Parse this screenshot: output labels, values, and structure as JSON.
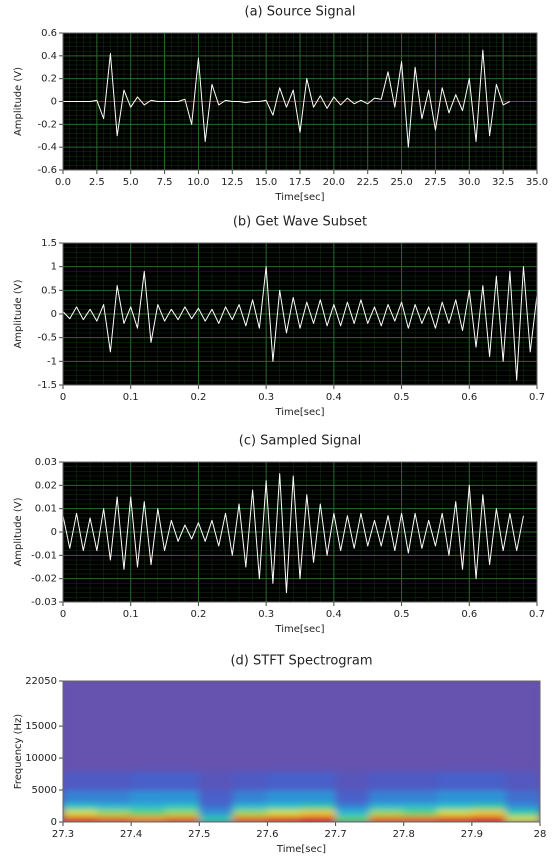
{
  "chart_data": [
    {
      "type": "line",
      "title": "(a) Source Signal",
      "x_label": "Time[sec]",
      "y_label": "Amplitude (V)",
      "color": "#ffffff",
      "background": "#000000",
      "grid": true,
      "grid_color": "#2a6a2a",
      "xlim": [
        0,
        35
      ],
      "ylim": [
        -0.6,
        0.6
      ],
      "xticks": [
        {
          "value": 0,
          "label": "0.0"
        },
        2.5,
        {
          "value": 5,
          "label": "5.0"
        },
        7.5,
        {
          "value": 10,
          "label": "10.0"
        },
        12.5,
        {
          "value": 15,
          "label": "15.0"
        },
        17.5,
        {
          "value": 20,
          "label": "20.0"
        },
        22.5,
        {
          "value": 25,
          "label": "25.0"
        },
        27.5,
        {
          "value": 30,
          "label": "30.0"
        },
        32.5,
        {
          "value": 35,
          "label": "35.0"
        }
      ],
      "yticks": [
        0.6,
        0.4,
        0.2,
        0,
        -0.2,
        -0.4,
        -0.6
      ],
      "x": [
        0,
        0.5,
        1,
        1.5,
        2,
        2.5,
        3,
        3.5,
        4,
        4.5,
        5,
        5.5,
        6,
        6.5,
        7,
        7.5,
        8,
        8.5,
        9,
        9.5,
        10,
        10.5,
        11,
        11.5,
        12,
        12.5,
        13,
        13.5,
        14,
        14.5,
        15,
        15.5,
        16,
        16.5,
        17,
        17.5,
        18,
        18.5,
        19,
        19.5,
        20,
        20.5,
        21,
        21.5,
        22,
        22.5,
        23,
        23.5,
        24,
        24.5,
        25,
        25.5,
        26,
        26.5,
        27,
        27.5,
        28,
        28.5,
        29,
        29.5,
        30,
        30.5,
        31,
        31.5,
        32,
        32.5,
        33
      ],
      "values": [
        0,
        0,
        0,
        0,
        0,
        0.01,
        -0.15,
        0.42,
        -0.3,
        0.1,
        -0.05,
        0.04,
        -0.03,
        0.01,
        0,
        0,
        0,
        0,
        0.02,
        -0.2,
        0.38,
        -0.35,
        0.15,
        -0.03,
        0.01,
        0,
        0,
        -0.01,
        0,
        0,
        0.01,
        -0.12,
        0.12,
        -0.05,
        0.1,
        -0.27,
        0.2,
        -0.05,
        0.05,
        -0.06,
        0.04,
        -0.03,
        0.03,
        -0.02,
        0.01,
        -0.02,
        0.03,
        0.02,
        0.26,
        -0.05,
        0.35,
        -0.4,
        0.3,
        -0.15,
        0.1,
        -0.25,
        0.12,
        -0.1,
        0.06,
        -0.08,
        0.2,
        -0.35,
        0.45,
        -0.3,
        0.15,
        -0.03,
        0
      ]
    },
    {
      "type": "line",
      "title": "(b) Get Wave Subset",
      "x_label": "Time[sec]",
      "y_label": "Amplitude (V)",
      "color": "#ffffff",
      "background": "#000000",
      "grid": true,
      "grid_color": "#2a6a2a",
      "xlim": [
        0,
        0.7
      ],
      "ylim": [
        -1.5,
        1.5
      ],
      "xticks": [
        0,
        0.1,
        0.2,
        0.3,
        0.4,
        0.5,
        0.6,
        0.7
      ],
      "yticks": [
        1.5,
        1,
        0.5,
        0,
        -0.5,
        -1,
        -1.5
      ],
      "x": [
        0,
        0.01,
        0.02,
        0.03,
        0.04,
        0.05,
        0.06,
        0.07,
        0.08,
        0.09,
        0.1,
        0.11,
        0.12,
        0.13,
        0.14,
        0.15,
        0.16,
        0.17,
        0.18,
        0.19,
        0.2,
        0.21,
        0.22,
        0.23,
        0.24,
        0.25,
        0.26,
        0.27,
        0.28,
        0.29,
        0.3,
        0.31,
        0.32,
        0.33,
        0.34,
        0.35,
        0.36,
        0.37,
        0.38,
        0.39,
        0.4,
        0.41,
        0.42,
        0.43,
        0.44,
        0.45,
        0.46,
        0.47,
        0.48,
        0.49,
        0.5,
        0.51,
        0.52,
        0.53,
        0.54,
        0.55,
        0.56,
        0.57,
        0.58,
        0.59,
        0.6,
        0.61,
        0.62,
        0.63,
        0.64,
        0.65,
        0.66,
        0.67,
        0.68,
        0.69,
        0.7
      ],
      "values": [
        0.05,
        -0.1,
        0.15,
        -0.12,
        0.1,
        -0.15,
        0.2,
        -0.8,
        0.6,
        -0.2,
        0.15,
        -0.3,
        0.9,
        -0.6,
        0.2,
        -0.15,
        0.1,
        -0.12,
        0.15,
        -0.1,
        0.12,
        -0.15,
        0.1,
        -0.2,
        0.15,
        -0.12,
        0.2,
        -0.25,
        0.3,
        -0.3,
        1.0,
        -1.0,
        0.5,
        -0.4,
        0.35,
        -0.3,
        0.25,
        -0.2,
        0.3,
        -0.25,
        0.2,
        -0.25,
        0.25,
        -0.2,
        0.3,
        -0.2,
        0.15,
        -0.25,
        0.2,
        -0.15,
        0.25,
        -0.3,
        0.2,
        -0.2,
        0.15,
        -0.3,
        0.25,
        -0.2,
        0.3,
        -0.35,
        0.5,
        -0.7,
        0.6,
        -0.9,
        0.8,
        -1.0,
        0.9,
        -1.4,
        1.0,
        -0.8,
        0.4
      ]
    },
    {
      "type": "line",
      "title": "(c) Sampled Signal",
      "x_label": "Time[sec]",
      "y_label": "Amplitude (V)",
      "color": "#ffffff",
      "background": "#000000",
      "grid": true,
      "grid_color": "#2a6a2a",
      "xlim": [
        0,
        0.7
      ],
      "ylim": [
        -0.03,
        0.03
      ],
      "xticks": [
        0,
        0.1,
        0.2,
        0.3,
        0.4,
        0.5,
        0.6,
        0.7
      ],
      "yticks": [
        0.03,
        0.02,
        0.01,
        0,
        -0.01,
        -0.02,
        -0.03
      ],
      "x": [
        0,
        0.01,
        0.02,
        0.03,
        0.04,
        0.05,
        0.06,
        0.07,
        0.08,
        0.09,
        0.1,
        0.11,
        0.12,
        0.13,
        0.14,
        0.15,
        0.16,
        0.17,
        0.18,
        0.19,
        0.2,
        0.21,
        0.22,
        0.23,
        0.24,
        0.25,
        0.26,
        0.27,
        0.28,
        0.29,
        0.3,
        0.31,
        0.32,
        0.33,
        0.34,
        0.35,
        0.36,
        0.37,
        0.38,
        0.39,
        0.4,
        0.41,
        0.42,
        0.43,
        0.44,
        0.45,
        0.46,
        0.47,
        0.48,
        0.49,
        0.5,
        0.51,
        0.52,
        0.53,
        0.54,
        0.55,
        0.56,
        0.57,
        0.58,
        0.59,
        0.6,
        0.61,
        0.62,
        0.63,
        0.64,
        0.65,
        0.66,
        0.67,
        0.68
      ],
      "values": [
        0.007,
        -0.007,
        0.008,
        -0.008,
        0.006,
        -0.008,
        0.01,
        -0.012,
        0.015,
        -0.016,
        0.015,
        -0.015,
        0.013,
        -0.014,
        0.01,
        -0.008,
        0.005,
        -0.004,
        0.003,
        -0.003,
        0.004,
        -0.004,
        0.005,
        -0.006,
        0.008,
        -0.01,
        0.012,
        -0.015,
        0.018,
        -0.02,
        0.022,
        -0.022,
        0.025,
        -0.026,
        0.024,
        -0.02,
        0.016,
        -0.013,
        0.012,
        -0.01,
        0.008,
        -0.008,
        0.007,
        -0.007,
        0.008,
        -0.006,
        0.005,
        -0.006,
        0.007,
        -0.008,
        0.008,
        -0.009,
        0.008,
        -0.007,
        0.005,
        -0.006,
        0.008,
        -0.01,
        0.013,
        -0.016,
        0.02,
        -0.02,
        0.016,
        -0.014,
        0.01,
        -0.008,
        0.008,
        -0.008,
        0.007
      ]
    },
    {
      "type": "heatmap",
      "title": "(d) STFT Spectrogram",
      "x_label": "Time[sec]",
      "y_label": "Frequency (Hz)",
      "xlim": [
        27.3,
        28
      ],
      "ylim": [
        0,
        22050
      ],
      "xticks": [
        27.3,
        27.4,
        27.5,
        27.6,
        27.7,
        27.8,
        27.9,
        28
      ],
      "yticks": [
        0,
        5000,
        10000,
        15000,
        22050
      ],
      "colorscale": [
        "#6c50a8",
        "#4a5cc8",
        "#2f8ed8",
        "#27c4cc",
        "#3fd07a",
        "#e4e040",
        "#f08a20",
        "#e03020"
      ],
      "xbins": [
        27.3,
        27.35,
        27.4,
        27.45,
        27.5,
        27.55,
        27.6,
        27.65,
        27.7,
        27.75,
        27.8,
        27.85,
        27.9,
        27.95,
        28
      ],
      "ybins": [
        0,
        1000,
        2000,
        3000,
        5000,
        8000,
        22050
      ],
      "z": [
        [
          0.95,
          0.9,
          0.85,
          0.9,
          0.5,
          0.9,
          0.95,
          1.0,
          0.6,
          0.9,
          0.9,
          0.95,
          1.0,
          0.7
        ],
        [
          0.7,
          0.65,
          0.6,
          0.65,
          0.3,
          0.65,
          0.7,
          0.75,
          0.4,
          0.65,
          0.6,
          0.7,
          0.75,
          0.5
        ],
        [
          0.45,
          0.4,
          0.4,
          0.45,
          0.2,
          0.4,
          0.45,
          0.5,
          0.25,
          0.4,
          0.4,
          0.45,
          0.5,
          0.3
        ],
        [
          0.25,
          0.25,
          0.3,
          0.3,
          0.15,
          0.25,
          0.3,
          0.3,
          0.15,
          0.25,
          0.25,
          0.3,
          0.3,
          0.2
        ],
        [
          0.12,
          0.12,
          0.15,
          0.15,
          0.08,
          0.12,
          0.15,
          0.15,
          0.08,
          0.12,
          0.12,
          0.15,
          0.15,
          0.1
        ],
        [
          0.03,
          0.03,
          0.03,
          0.03,
          0.03,
          0.03,
          0.03,
          0.03,
          0.03,
          0.03,
          0.03,
          0.03,
          0.03,
          0.03
        ]
      ]
    }
  ]
}
